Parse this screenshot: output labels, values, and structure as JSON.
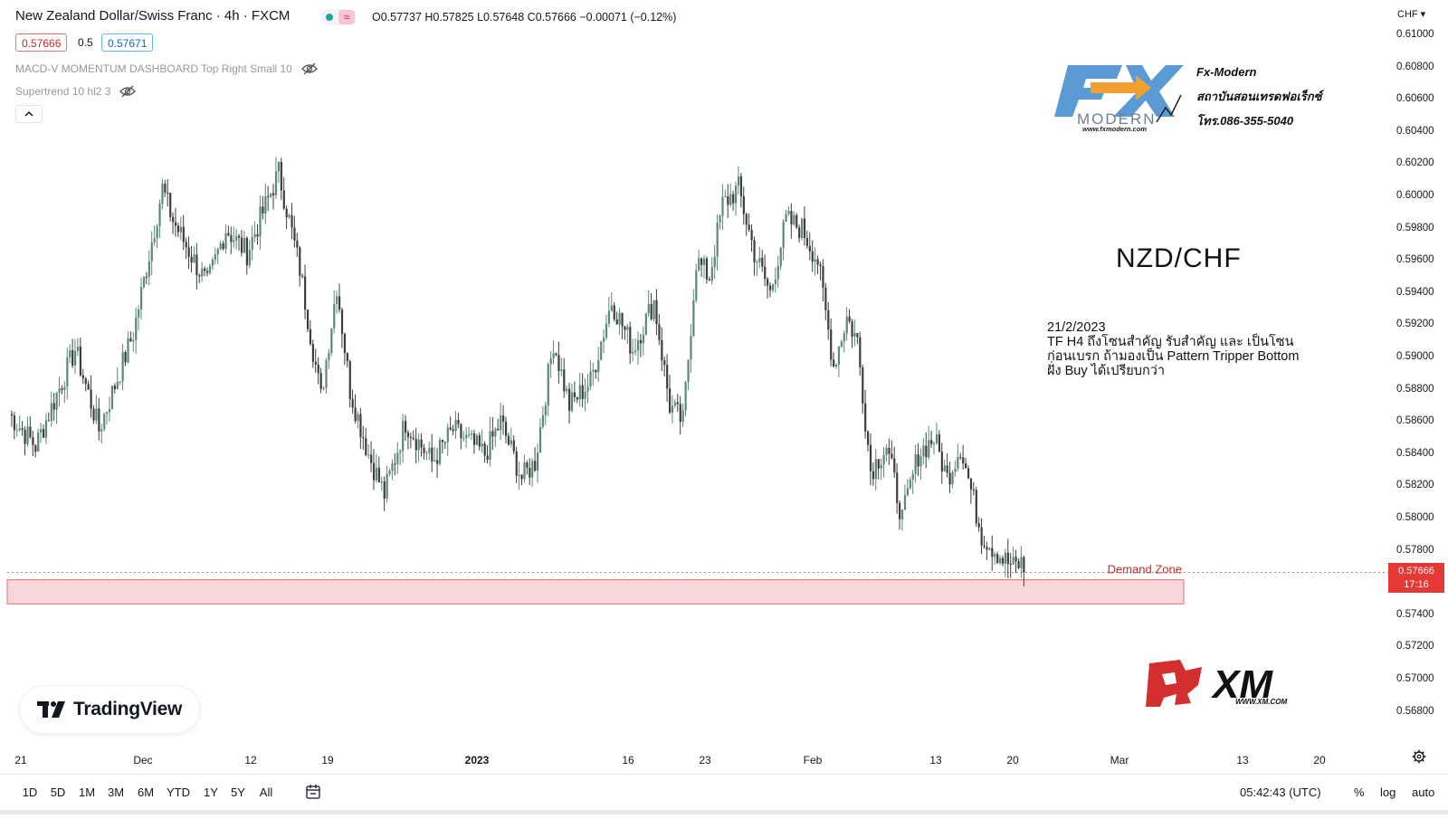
{
  "header": {
    "title": "New Zealand Dollar/Swiss Franc · 4h · FXCM",
    "ohlc": "O0.57737 H0.57825 L0.57648 C0.57666 −0.00071 (−0.12%)",
    "wave_symbol": "≈",
    "bid": "0.57666",
    "spread": "0.5",
    "ask": "0.57671"
  },
  "indicators": [
    {
      "label": "MACD-V MOMENTUM DASHBOARD Top Right Small 10",
      "icon": "eye-off-icon"
    },
    {
      "label": "Supertrend 10 hl2 3",
      "icon": "eye-off-icon"
    }
  ],
  "overlay": {
    "brand_lines": [
      "Fx-Modern",
      "สถาบันสอนเทรดฟอเร็กซ์",
      "โทร.086-355-5040"
    ],
    "brand_logo_text": "MODERN",
    "brand_url": "www.fxmodern.com",
    "pair": "NZD/CHF",
    "note_lines": [
      "21/2/2023",
      "TF H4 ถึงโซนสำคัญ รับสำคัญ และ เป็นโซน",
      "ก่อนเบรก ถ้ามองเป็น Pattern Tripper Bottom",
      "ฝั่ง Buy ได้เปรียบกว่า"
    ],
    "xm_logo": "XM",
    "xm_url": "WWW.XM.COM",
    "tradingview": "TradingView"
  },
  "colors": {
    "up": "#5b8a72",
    "down": "#3d3d3d",
    "zone_fill": "#f8d7da",
    "zone_border": "#e57373",
    "current_price": "#e53935",
    "accent_blue": "#2962ff"
  },
  "chart_data": {
    "type": "candlestick",
    "symbol": "NZD/CHF",
    "timeframe": "4h",
    "ylim": [
      0.567,
      0.611
    ],
    "y_ticks": [
      "0.61000",
      "0.60800",
      "0.60600",
      "0.60400",
      "0.60200",
      "0.60000",
      "0.59800",
      "0.59600",
      "0.59400",
      "0.59200",
      "0.59000",
      "0.58800",
      "0.58600",
      "0.58400",
      "0.58200",
      "0.58000",
      "0.57800",
      "0.57400",
      "0.57200",
      "0.57000",
      "0.56800"
    ],
    "x_ticks": [
      {
        "label": "21",
        "bold": false
      },
      {
        "label": "Dec",
        "bold": false
      },
      {
        "label": "12",
        "bold": false
      },
      {
        "label": "19",
        "bold": false
      },
      {
        "label": "2023",
        "bold": true
      },
      {
        "label": "16",
        "bold": false
      },
      {
        "label": "23",
        "bold": false
      },
      {
        "label": "Feb",
        "bold": false
      },
      {
        "label": "13",
        "bold": false
      },
      {
        "label": "20",
        "bold": false
      },
      {
        "label": "Mar",
        "bold": false
      },
      {
        "label": "13",
        "bold": false
      },
      {
        "label": "20",
        "bold": false
      }
    ],
    "swing_path": [
      [
        0,
        0.5865
      ],
      [
        10,
        0.5845
      ],
      [
        20,
        0.5885
      ],
      [
        25,
        0.5905
      ],
      [
        34,
        0.5855
      ],
      [
        47,
        0.5915
      ],
      [
        58,
        0.6005
      ],
      [
        62,
        0.5985
      ],
      [
        70,
        0.596
      ],
      [
        75,
        0.5945
      ],
      [
        82,
        0.598
      ],
      [
        90,
        0.5965
      ],
      [
        96,
        0.599
      ],
      [
        102,
        0.6015
      ],
      [
        110,
        0.5955
      ],
      [
        118,
        0.5875
      ],
      [
        124,
        0.5945
      ],
      [
        129,
        0.588
      ],
      [
        136,
        0.584
      ],
      [
        142,
        0.5815
      ],
      [
        150,
        0.586
      ],
      [
        160,
        0.5835
      ],
      [
        168,
        0.5855
      ],
      [
        180,
        0.584
      ],
      [
        186,
        0.586
      ],
      [
        194,
        0.5825
      ],
      [
        199,
        0.5835
      ],
      [
        206,
        0.591
      ],
      [
        212,
        0.587
      ],
      [
        220,
        0.5885
      ],
      [
        228,
        0.5935
      ],
      [
        236,
        0.5905
      ],
      [
        244,
        0.5935
      ],
      [
        250,
        0.587
      ],
      [
        255,
        0.586
      ],
      [
        260,
        0.596
      ],
      [
        265,
        0.595
      ],
      [
        270,
        0.5995
      ],
      [
        276,
        0.6005
      ],
      [
        282,
        0.5965
      ],
      [
        288,
        0.594
      ],
      [
        294,
        0.5985
      ],
      [
        300,
        0.598
      ],
      [
        306,
        0.596
      ],
      [
        312,
        0.5895
      ],
      [
        317,
        0.5925
      ],
      [
        321,
        0.591
      ],
      [
        326,
        0.583
      ],
      [
        332,
        0.5845
      ],
      [
        338,
        0.58
      ],
      [
        344,
        0.584
      ],
      [
        350,
        0.585
      ],
      [
        355,
        0.5825
      ],
      [
        360,
        0.5845
      ],
      [
        368,
        0.579
      ],
      [
        376,
        0.5775
      ],
      [
        380,
        0.577
      ],
      [
        384,
        0.5773
      ]
    ],
    "last_close": 0.57666,
    "last_price_label": "0.57666",
    "countdown": "17:16",
    "zone": {
      "label": "Demand Zone",
      "top": 0.5762,
      "bottom": 0.5747
    }
  },
  "bottom_bar": {
    "ranges": [
      "1D",
      "5D",
      "1M",
      "3M",
      "6M",
      "YTD",
      "1Y",
      "5Y",
      "All"
    ],
    "clock": "05:42:43 (UTC)",
    "scale_opts": [
      "%",
      "log",
      "auto"
    ],
    "currency": "CHF"
  }
}
